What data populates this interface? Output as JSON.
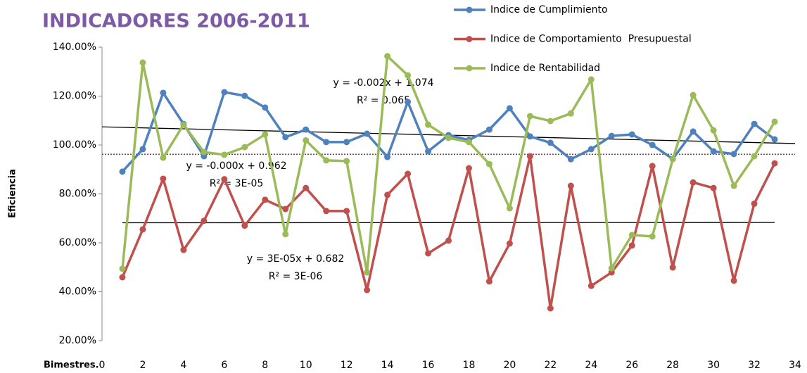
{
  "chart_data": {
    "type": "line",
    "title": "INDICADORES 2006-2011",
    "y_label": "Eficiencia",
    "x_label": "Bimestres.",
    "x": [
      1,
      2,
      3,
      4,
      5,
      6,
      7,
      8,
      9,
      10,
      11,
      12,
      13,
      14,
      15,
      16,
      17,
      18,
      19,
      20,
      21,
      22,
      23,
      24,
      25,
      26,
      27,
      28,
      29,
      30,
      31,
      32,
      33
    ],
    "xlim": [
      0,
      34
    ],
    "xticks": [
      0,
      2,
      4,
      6,
      8,
      10,
      12,
      14,
      16,
      18,
      20,
      22,
      24,
      26,
      28,
      30,
      32,
      34
    ],
    "ylim": [
      20,
      140
    ],
    "yticks": [
      {
        "value": 20,
        "label": "20.00%"
      },
      {
        "value": 40,
        "label": "40.00%"
      },
      {
        "value": 60,
        "label": "60.00%"
      },
      {
        "value": 80,
        "label": "80.00%"
      },
      {
        "value": 100,
        "label": "100.00%"
      },
      {
        "value": 120,
        "label": "120.00%"
      },
      {
        "value": 140,
        "label": "140.00%"
      }
    ],
    "series": [
      {
        "name": "Indice de Cumplimiento",
        "color": "#4f81bd",
        "values": [
          89.1,
          98.3,
          121.3,
          108.6,
          95.4,
          121.6,
          120.1,
          115.3,
          103.2,
          106.3,
          101.2,
          101.2,
          104.6,
          95.1,
          117.6,
          97.4,
          104,
          102,
          106.3,
          115,
          103.5,
          100.9,
          94.2,
          98.3,
          103.7,
          104.3,
          100,
          94.3,
          105.5,
          97.4,
          96.3,
          108.6,
          102.3
        ]
      },
      {
        "name": "Indice de Comportamiento  Presupuestal",
        "color": "#c0504d",
        "values": [
          45.9,
          65.5,
          86.2,
          57.1,
          69,
          86,
          67,
          77.6,
          73.8,
          82.4,
          73,
          73,
          40.7,
          79.6,
          88.2,
          55.7,
          60.9,
          90.5,
          44.2,
          59.7,
          95.4,
          33.2,
          83.3,
          42.4,
          47.9,
          58.9,
          91.4,
          49.9,
          84.7,
          82.4,
          44.5,
          76,
          92.5
        ]
      },
      {
        "name": "Indice de Rentabilidad",
        "color": "#9bbb59",
        "values": [
          49.4,
          133.7,
          94.8,
          108.3,
          97.1,
          96,
          99.1,
          104.3,
          63.5,
          101.9,
          93.7,
          93.4,
          47.9,
          136.3,
          128.5,
          108.3,
          102.9,
          101.2,
          92.2,
          74.1,
          111.8,
          109.8,
          112.9,
          126.8,
          49.6,
          63.2,
          62.6,
          94.2,
          120.4,
          106,
          83.3,
          95.4,
          109.5
        ]
      }
    ],
    "trendlines": [
      {
        "equation": "y = -0.002x + 1.074",
        "r2": "R² = 0.065",
        "color": "#000000",
        "x": [
          0,
          34
        ],
        "values": [
          107.4,
          100.6
        ]
      },
      {
        "equation": "y = -0.000x + 0.962",
        "r2": "R² = 3E-05",
        "color": "#7b2a3a",
        "x": [
          0,
          34
        ],
        "values": [
          96.2,
          96.2
        ]
      },
      {
        "equation": "y = 3E-05x + 0.682",
        "r2": "R² = 3E-06",
        "color": "#000000",
        "x": [
          1,
          33
        ],
        "values": [
          68.2,
          68.3
        ]
      }
    ]
  }
}
